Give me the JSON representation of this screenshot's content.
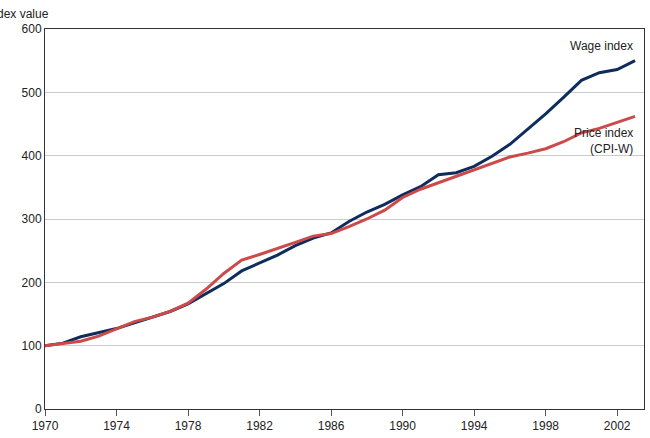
{
  "chart_data": {
    "type": "line",
    "y_label": "Index value",
    "x": [
      1970,
      1971,
      1972,
      1973,
      1974,
      1975,
      1976,
      1977,
      1978,
      1979,
      1980,
      1981,
      1982,
      1983,
      1984,
      1985,
      1986,
      1987,
      1988,
      1989,
      1990,
      1991,
      1992,
      1993,
      1994,
      1995,
      1996,
      1997,
      1998,
      1999,
      2000,
      2001,
      2002,
      2003
    ],
    "series": [
      {
        "name": "Wage index",
        "color": "#0f2d5c",
        "values": [
          100,
          104,
          114,
          121,
          127,
          136,
          145,
          154,
          166,
          182,
          198,
          218,
          231,
          243,
          258,
          270,
          278,
          296,
          311,
          323,
          338,
          351,
          370,
          373,
          383,
          399,
          418,
          442,
          466,
          492,
          519,
          531,
          536,
          550
        ]
      },
      {
        "name": "Price index (CPI-W)",
        "color": "#cc4a4a",
        "values": [
          100,
          103,
          107,
          115,
          127,
          138,
          145,
          154,
          167,
          189,
          214,
          235,
          244,
          253,
          263,
          273,
          277,
          288,
          300,
          314,
          334,
          347,
          357,
          367,
          377,
          387,
          398,
          404,
          411,
          422,
          436,
          443,
          453,
          462
        ]
      }
    ],
    "xlim": [
      1970,
      2003.5
    ],
    "xticks": [
      1970,
      1974,
      1978,
      1982,
      1986,
      1990,
      1994,
      1998,
      2002
    ],
    "ylim": [
      0,
      600
    ],
    "yticks": [
      0,
      100,
      200,
      300,
      400,
      500,
      600
    ],
    "grid": true
  }
}
